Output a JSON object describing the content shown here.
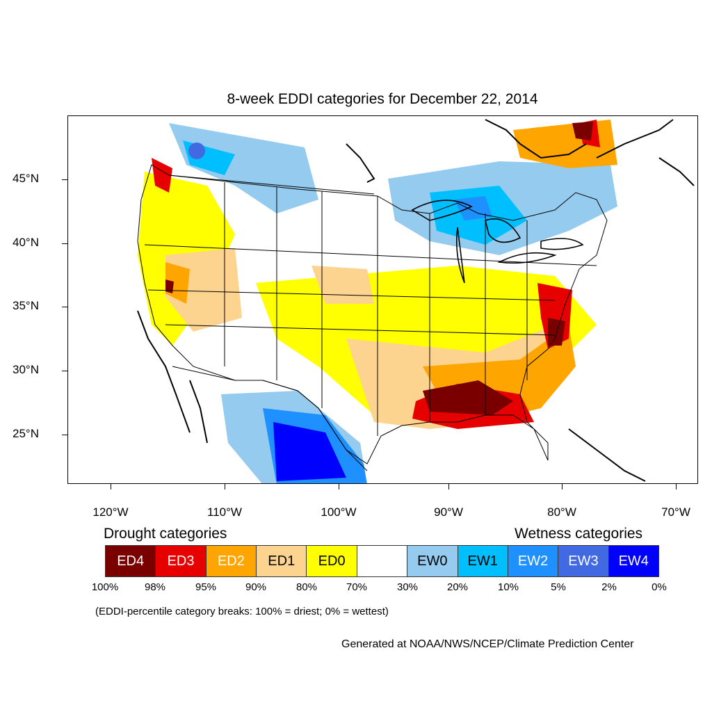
{
  "title": "8-week EDDI categories for December 22, 2014",
  "axes": {
    "latitudes": [
      "45°N",
      "40°N",
      "35°N",
      "30°N",
      "25°N"
    ],
    "longitudes": [
      "120°W",
      "110°W",
      "100°W",
      "90°W",
      "80°W",
      "70°W"
    ]
  },
  "legend": {
    "drought_heading": "Drought categories",
    "wetness_heading": "Wetness categories",
    "categories": [
      {
        "label": "ED4",
        "color": "#7a0000",
        "text_color": "#ffffff"
      },
      {
        "label": "ED3",
        "color": "#e60000",
        "text_color": "#ffffff"
      },
      {
        "label": "ED2",
        "color": "#ffa500",
        "text_color": "#ffffff"
      },
      {
        "label": "ED1",
        "color": "#fcd38f",
        "text_color": "#000000"
      },
      {
        "label": "ED0",
        "color": "#ffff00",
        "text_color": "#000000"
      },
      {
        "label": "",
        "color": "#ffffff",
        "text_color": "#000000"
      },
      {
        "label": "EW0",
        "color": "#94cbee",
        "text_color": "#000000"
      },
      {
        "label": "EW1",
        "color": "#00bfff",
        "text_color": "#000000"
      },
      {
        "label": "EW2",
        "color": "#1e90ff",
        "text_color": "#ffffff"
      },
      {
        "label": "EW3",
        "color": "#4169e1",
        "text_color": "#ffffff"
      },
      {
        "label": "EW4",
        "color": "#0000ff",
        "text_color": "#ffffff"
      }
    ],
    "breaks": [
      "100%",
      "98%",
      "95%",
      "90%",
      "80%",
      "70%",
      "30%",
      "20%",
      "10%",
      "5%",
      "2%",
      "0%"
    ]
  },
  "note": "(EDDI-percentile category breaks: 100% = driest; 0% = wettest)",
  "credit": "Generated at NOAA/NWS/NCEP/Climate Prediction Center"
}
